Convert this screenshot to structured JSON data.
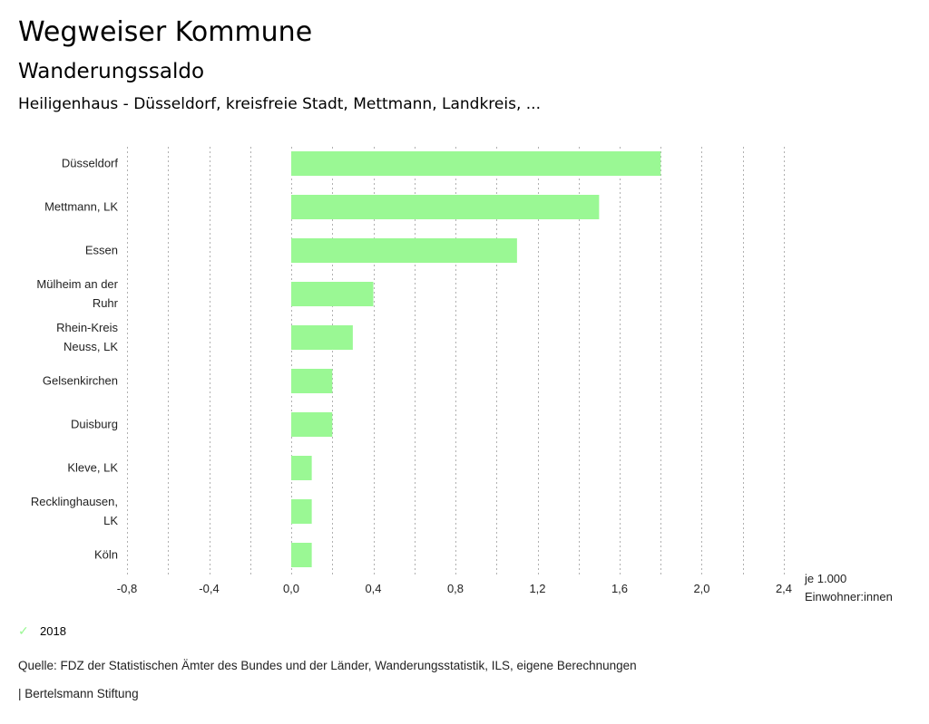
{
  "header": {
    "title": "Wegweiser Kommune",
    "subtitle": "Wanderungssaldo",
    "region": "Heiligenhaus - Düsseldorf, kreisfreie Stadt, Mettmann, Landkreis, ..."
  },
  "chart_data": {
    "type": "bar",
    "orientation": "horizontal",
    "title": "Wanderungssaldo",
    "categories": [
      [
        "Düsseldorf"
      ],
      [
        "Mettmann, LK"
      ],
      [
        "Essen"
      ],
      [
        "Mülheim an der",
        "Ruhr"
      ],
      [
        "Rhein-Kreis",
        "Neuss, LK"
      ],
      [
        "Gelsenkirchen"
      ],
      [
        "Duisburg"
      ],
      [
        "Kleve, LK"
      ],
      [
        "Recklinghausen,",
        "LK"
      ],
      [
        "Köln"
      ]
    ],
    "series": [
      {
        "name": "2018",
        "color": "#9af894",
        "values": [
          1.8,
          1.5,
          1.1,
          0.4,
          0.3,
          0.2,
          0.2,
          0.1,
          0.1,
          0.1
        ]
      }
    ],
    "xlim": [
      -0.8,
      2.4
    ],
    "xticks": [
      -0.8,
      -0.4,
      0.0,
      0.4,
      0.8,
      1.2,
      1.6,
      2.0,
      2.4
    ],
    "xtick_labels": [
      "-0,8",
      "-0,4",
      "0,0",
      "0,4",
      "0,8",
      "1,2",
      "1,6",
      "2,0",
      "2,4"
    ],
    "minor_grid_step": 0.2,
    "xlabel": [
      "je 1.000",
      "Einwohner:innen"
    ],
    "ylabel": "",
    "grid": "vertical dotted",
    "legend_position": "bottom-left"
  },
  "legend": {
    "items": [
      {
        "label": "2018",
        "icon": "check-icon",
        "color": "#9af894"
      }
    ]
  },
  "footer": {
    "source": "Quelle: FDZ der Statistischen Ämter des Bundes und der Länder, Wanderungsstatistik, ILS, eigene Berechnungen",
    "brand": "| Bertelsmann Stiftung"
  }
}
